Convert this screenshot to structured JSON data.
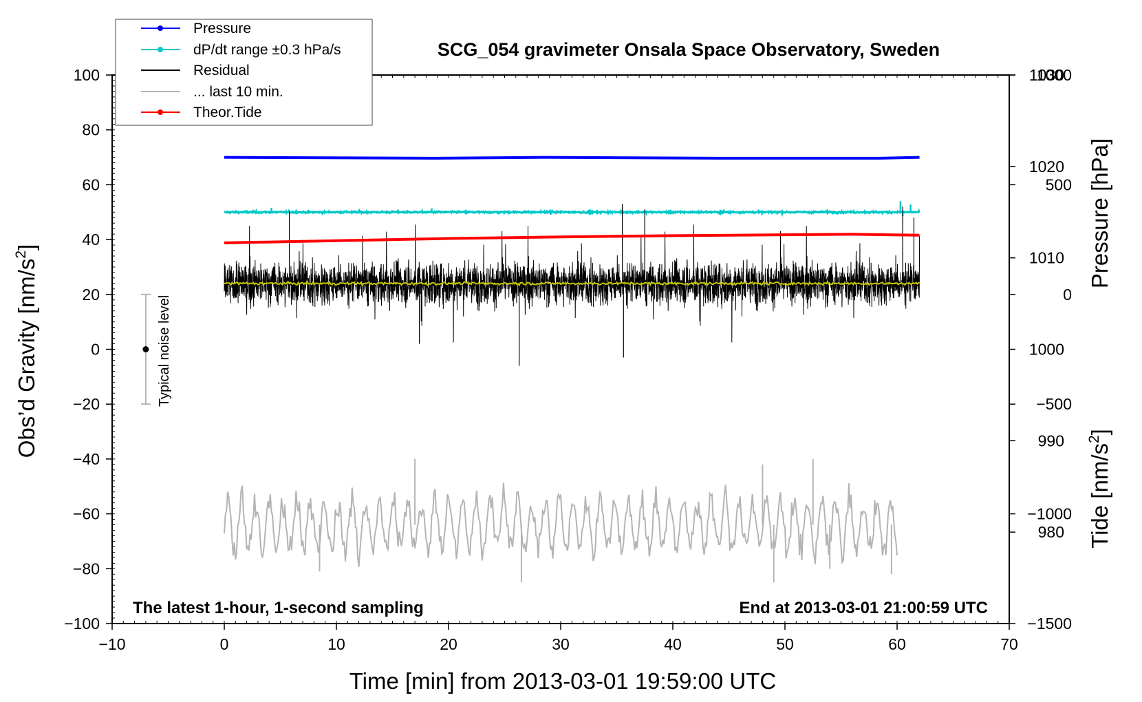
{
  "chart_data": {
    "type": "line",
    "title": "SCG_054 gravimeter Onsala Space Observatory, Sweden",
    "xlabel": "Time [min] from 2013-03-01 19:59:00 UTC",
    "ylabel": "Obs'd Gravity [nm/s2]",
    "ylabel_parts": [
      "Obs’d Gravity [nm/s",
      "2",
      "]"
    ],
    "y2label_pressure": "Pressure [hPa]",
    "y2label_tide_parts": [
      "Tide [nm/s",
      "2",
      "]"
    ],
    "xlim": [
      -10,
      70
    ],
    "ylim": [
      -100,
      100
    ],
    "pressure_ylim": [
      970,
      1030
    ],
    "tide_ylim": [
      -1500,
      1000
    ],
    "x_ticks": [
      -10,
      0,
      10,
      20,
      30,
      40,
      50,
      60,
      70
    ],
    "x_tick_labels": [
      "−10",
      "0",
      "10",
      "20",
      "30",
      "40",
      "50",
      "60",
      "70"
    ],
    "y_ticks": [
      100,
      80,
      60,
      40,
      20,
      0,
      -20,
      -40,
      -60,
      -80,
      -100
    ],
    "y_tick_labels": [
      "100",
      "80",
      "60",
      "40",
      "20",
      "0",
      "−20",
      "−40",
      "−60",
      "−80",
      "−100"
    ],
    "pressure_ticks": [
      1030,
      1020,
      1010,
      1000,
      990,
      980
    ],
    "pressure_tick_labels": [
      "1030",
      "1020",
      "1010",
      "1000",
      "990",
      "980"
    ],
    "tide_ticks": [
      1000,
      500,
      0,
      -500,
      -1000,
      -1500
    ],
    "tide_tick_labels": [
      "1000",
      "500",
      "0",
      "−500",
      "−1000",
      "−1500"
    ],
    "legend": {
      "placement": "top-left",
      "entries": [
        {
          "label": "Pressure",
          "color": "#0000ff",
          "marker": true
        },
        {
          "label": "dP/dt range ±0.3 hPa/s",
          "color": "#00c8c8",
          "marker": true
        },
        {
          "label": "Residual",
          "color": "#000000",
          "marker": false
        },
        {
          "label": "... last 10 min.",
          "color": "#b4b4b4",
          "marker": false
        },
        {
          "label": "Theor.Tide",
          "color": "#ff0000",
          "marker": true
        }
      ]
    },
    "annotations": {
      "bottom_left": "The latest 1-hour, 1-second sampling",
      "bottom_right": "End at 2013-03-01 21:00:59 UTC",
      "noise_label": "Typical noise level",
      "noise_bar": {
        "x": -7,
        "center": 0,
        "low": -20,
        "high": 20
      }
    },
    "colors": {
      "pressure": "#0000ff",
      "dpdt": "#00c8c8",
      "residual": "#000000",
      "residual_mean": "#c8c800",
      "last10": "#b4b4b4",
      "tide": "#ff0000",
      "noise_bar": "#b4b4b4"
    },
    "series": [
      {
        "name": "Pressure",
        "axis": "pressure",
        "points": [
          [
            0,
            1021.0
          ],
          [
            18.5,
            1020.9
          ],
          [
            28.5,
            1021.0
          ],
          [
            44,
            1020.9
          ],
          [
            58.5,
            1020.9
          ],
          [
            62,
            1021.0
          ]
        ]
      },
      {
        "name": "dP/dt range ±0.3 hPa/s",
        "axis": "gravity",
        "center": 50,
        "noise": 0.6,
        "spikes": [
          [
            4.2,
            51.6
          ],
          [
            12,
            50.9
          ],
          [
            18.5,
            51.4
          ],
          [
            60.3,
            54.0
          ],
          [
            60.5,
            48.5
          ],
          [
            61.2,
            52.8
          ]
        ]
      },
      {
        "name": "Residual",
        "axis": "gravity",
        "x_range": [
          0,
          62
        ],
        "mean": 24,
        "spread": 10,
        "extremes": [
          [
            26.3,
            -6
          ],
          [
            35.5,
            53
          ],
          [
            35.6,
            -3
          ],
          [
            37.5,
            51
          ],
          [
            5.8,
            50.5
          ],
          [
            60.5,
            52
          ],
          [
            61.5,
            48
          ],
          [
            17.4,
            2
          ]
        ]
      },
      {
        "name": "Residual running mean",
        "axis": "gravity",
        "level": 24
      },
      {
        "name": "... last 10 min.",
        "axis": "gravity",
        "x_range": [
          0,
          60
        ],
        "center": -64,
        "amplitude": 9,
        "extremes": [
          [
            8.5,
            -81
          ],
          [
            17,
            -40
          ],
          [
            26.5,
            -85
          ],
          [
            48,
            -42
          ],
          [
            49,
            -85
          ],
          [
            52.5,
            -40
          ],
          [
            54,
            -80
          ],
          [
            59.5,
            -82
          ]
        ]
      },
      {
        "name": "Theor.Tide",
        "axis": "tide",
        "points": [
          [
            0,
            235
          ],
          [
            10,
            245
          ],
          [
            20,
            255
          ],
          [
            30,
            262
          ],
          [
            40,
            268
          ],
          [
            50,
            272
          ],
          [
            56,
            274
          ],
          [
            62,
            270
          ]
        ]
      }
    ]
  }
}
